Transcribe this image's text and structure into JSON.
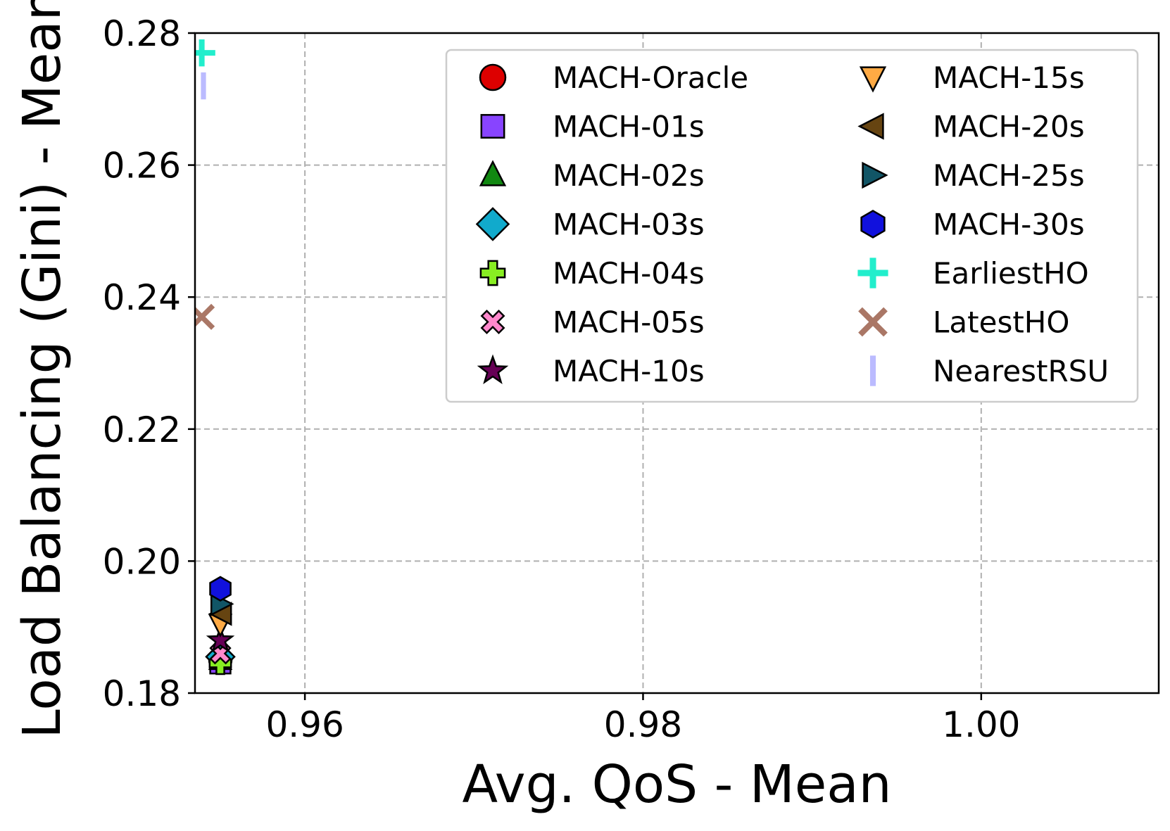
{
  "chart_data": {
    "type": "scatter",
    "title": "",
    "xlabel": "Avg. QoS - Mean",
    "ylabel": "Load Balancing (Gini) - Mean",
    "xlim": [
      0.9535,
      1.0105
    ],
    "ylim": [
      0.18,
      0.28
    ],
    "xticks": [
      0.96,
      0.98,
      1.0
    ],
    "xtick_labels": [
      "0.96",
      "0.98",
      "1.00"
    ],
    "yticks": [
      0.18,
      0.2,
      0.22,
      0.24,
      0.26,
      0.28
    ],
    "ytick_labels": [
      "0.18",
      "0.20",
      "0.22",
      "0.24",
      "0.26",
      "0.28"
    ],
    "grid": true,
    "legend_position": "top-right",
    "legend_columns": 2,
    "series": [
      {
        "name": "MACH-Oracle",
        "marker": "circle",
        "color": "#dd0000",
        "x": 0.955,
        "y": 0.185
      },
      {
        "name": "MACH-01s",
        "marker": "square",
        "color": "#8844ff",
        "x": 0.955,
        "y": 0.1845
      },
      {
        "name": "MACH-02s",
        "marker": "triangle-up",
        "color": "#118811",
        "x": 0.955,
        "y": 0.185
      },
      {
        "name": "MACH-03s",
        "marker": "diamond",
        "color": "#11aacc",
        "x": 0.955,
        "y": 0.1855
      },
      {
        "name": "MACH-04s",
        "marker": "plus-filled",
        "color": "#88ee22",
        "x": 0.955,
        "y": 0.1845
      },
      {
        "name": "MACH-05s",
        "marker": "x-filled",
        "color": "#ff88cc",
        "x": 0.955,
        "y": 0.186
      },
      {
        "name": "MACH-10s",
        "marker": "star",
        "color": "#660055",
        "x": 0.955,
        "y": 0.188
      },
      {
        "name": "MACH-15s",
        "marker": "triangle-down",
        "color": "#ffaa44",
        "x": 0.955,
        "y": 0.1905
      },
      {
        "name": "MACH-20s",
        "marker": "triangle-left",
        "color": "#664411",
        "x": 0.9551,
        "y": 0.192
      },
      {
        "name": "MACH-25s",
        "marker": "triangle-right",
        "color": "#115566",
        "x": 0.955,
        "y": 0.1935
      },
      {
        "name": "MACH-30s",
        "marker": "hexagon",
        "color": "#1111dd",
        "x": 0.955,
        "y": 0.1958
      },
      {
        "name": "EarliestHO",
        "marker": "plus",
        "color": "#22eecc",
        "x": 0.9539,
        "y": 0.277
      },
      {
        "name": "LatestHO",
        "marker": "x",
        "color": "#aa7766",
        "x": 0.9539,
        "y": 0.237
      },
      {
        "name": "NearestRSU",
        "marker": "vline",
        "color": "#bbbbff",
        "x": 0.954,
        "y": 0.272
      }
    ]
  }
}
